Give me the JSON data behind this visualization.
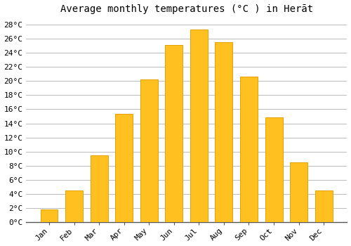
{
  "title": "Average monthly temperatures (°C ) in Herāt",
  "months": [
    "Jan",
    "Feb",
    "Mar",
    "Apr",
    "May",
    "Jun",
    "Jul",
    "Aug",
    "Sep",
    "Oct",
    "Nov",
    "Dec"
  ],
  "values": [
    1.8,
    4.5,
    9.5,
    15.3,
    20.2,
    25.1,
    27.3,
    25.5,
    20.6,
    14.8,
    8.5,
    4.5
  ],
  "bar_color": "#FFC020",
  "bar_edge_color": "#E8A000",
  "background_color": "#FFFFFF",
  "grid_color": "#BBBBBB",
  "ylim": [
    0,
    29
  ],
  "yticks": [
    0,
    2,
    4,
    6,
    8,
    10,
    12,
    14,
    16,
    18,
    20,
    22,
    24,
    26,
    28
  ],
  "ytick_labels": [
    "0°C",
    "2°C",
    "4°C",
    "6°C",
    "8°C",
    "10°C",
    "12°C",
    "14°C",
    "16°C",
    "18°C",
    "20°C",
    "22°C",
    "24°C",
    "26°C",
    "28°C"
  ],
  "title_fontsize": 10,
  "tick_fontsize": 8,
  "bar_width": 0.7,
  "figsize": [
    5.0,
    3.5
  ],
  "dpi": 100
}
